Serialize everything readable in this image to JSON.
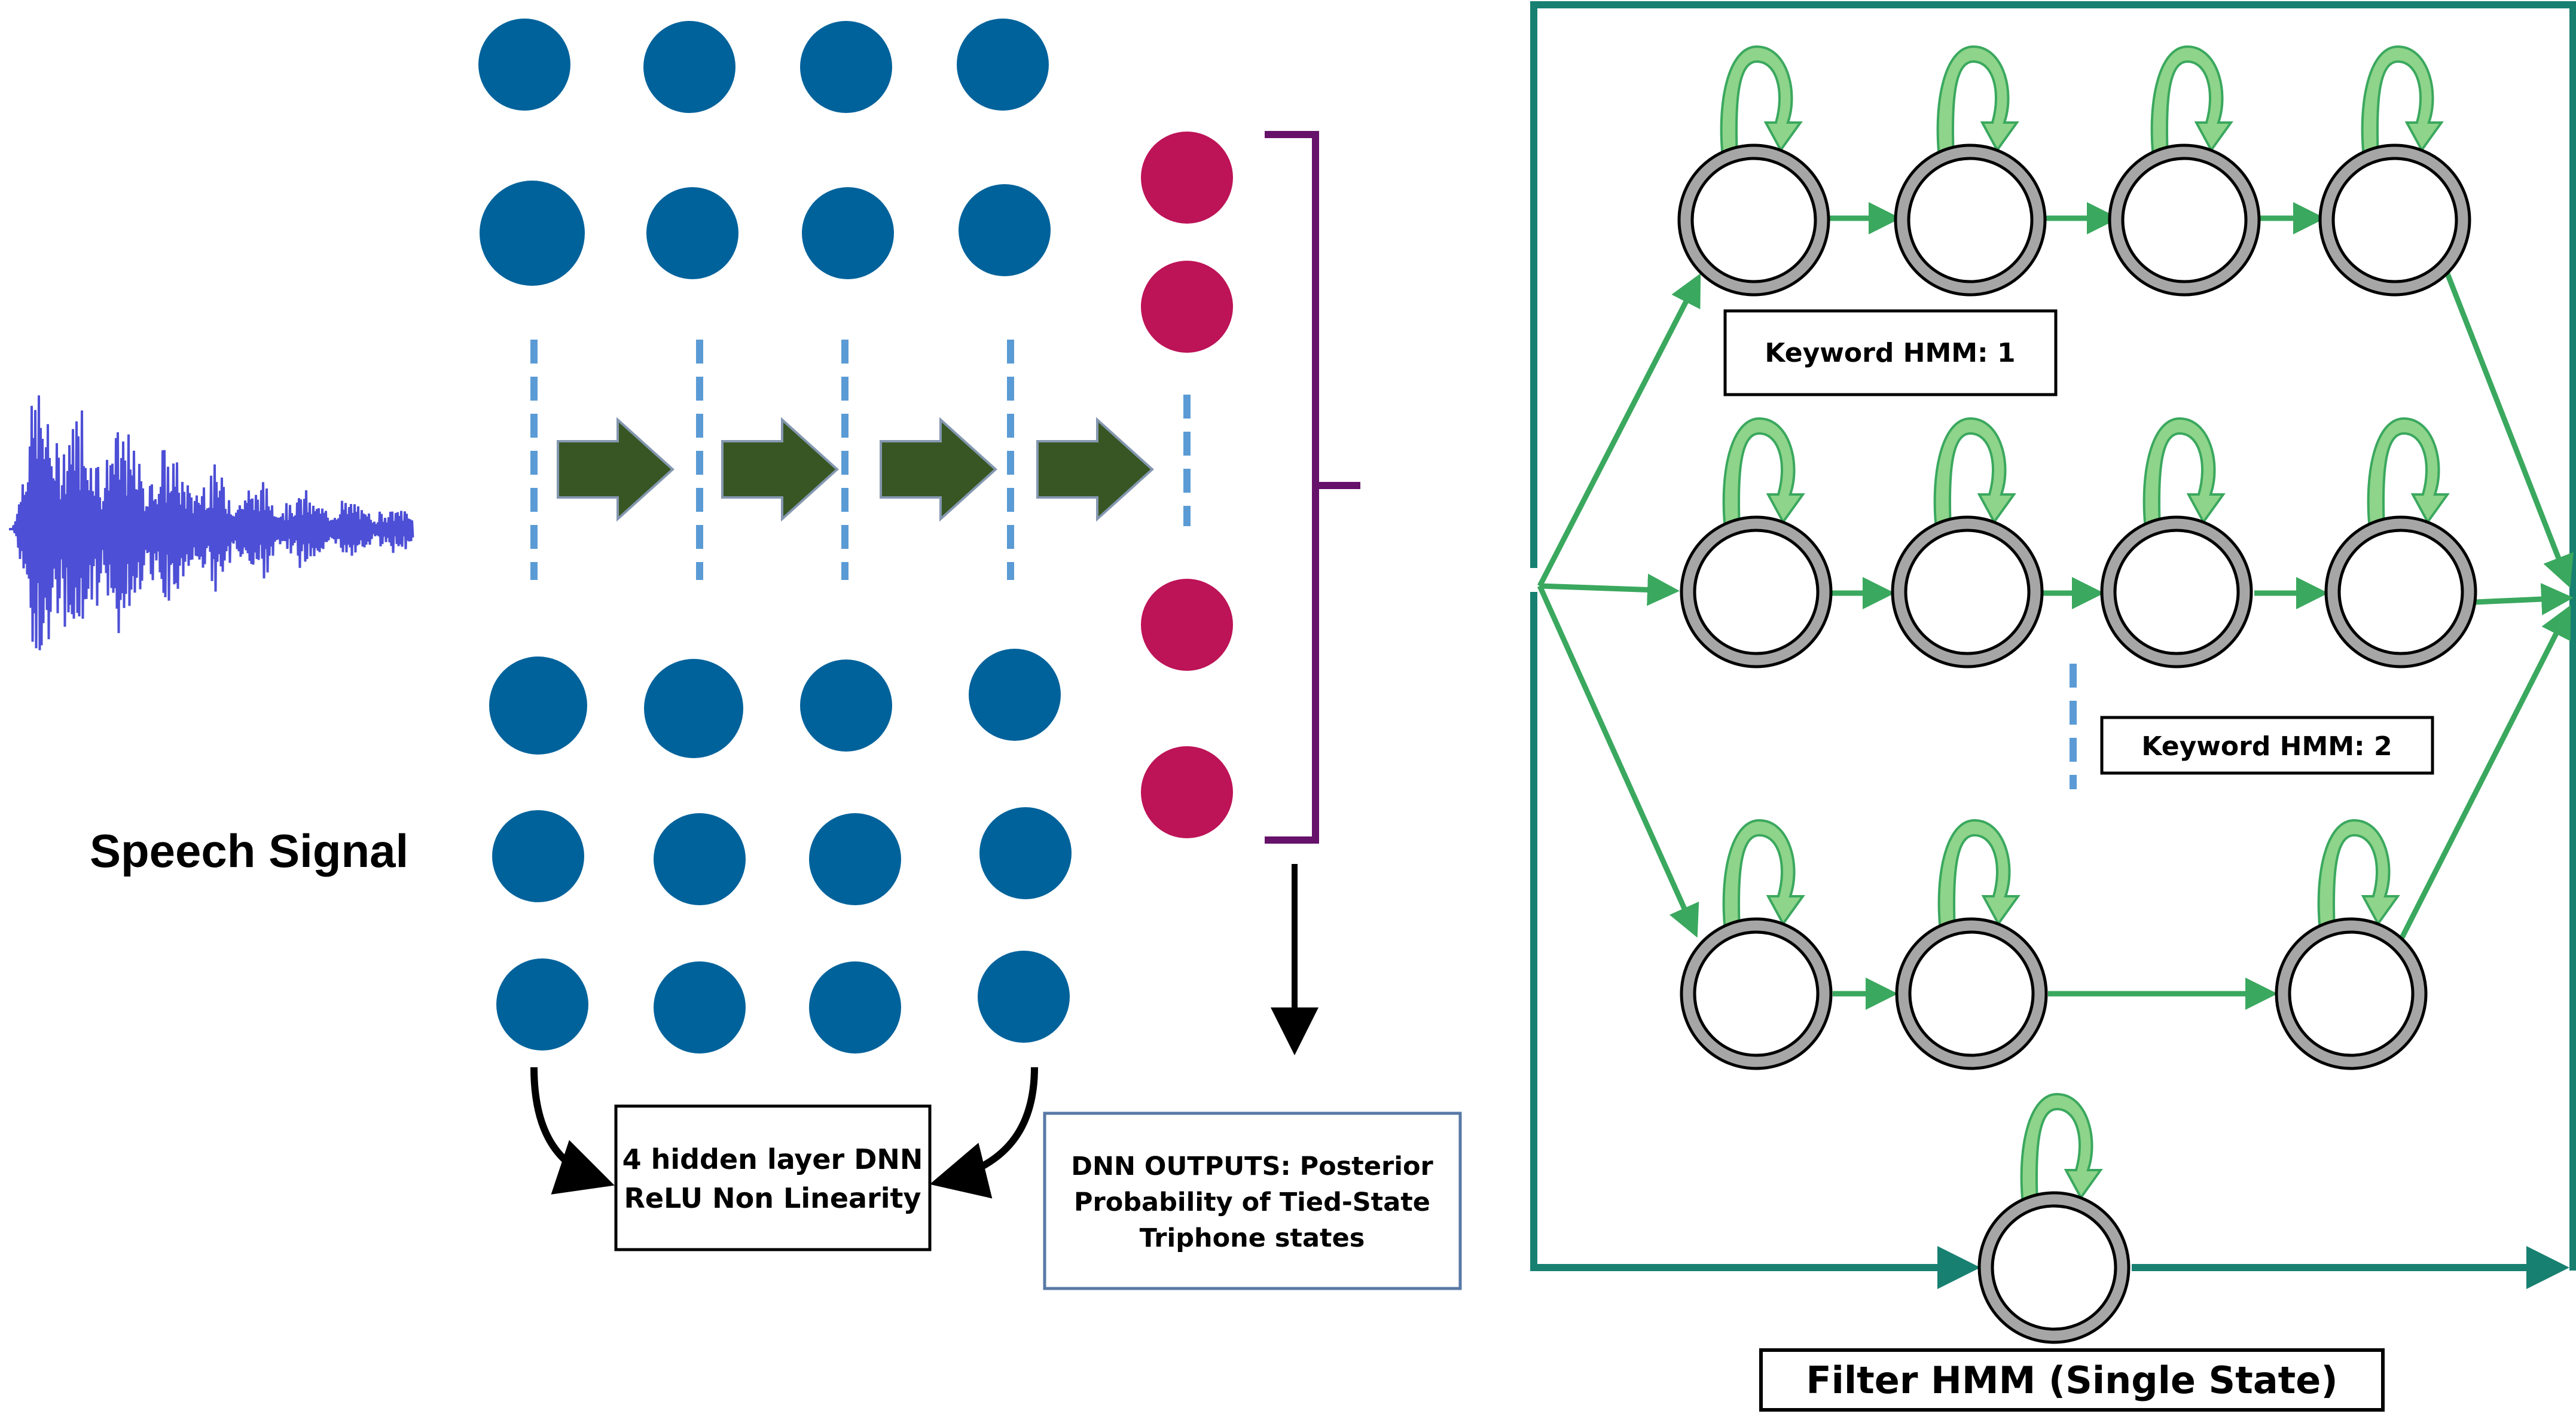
{
  "labels": {
    "speech_signal": "Speech Signal",
    "dnn_box_line1": "4 hidden layer DNN",
    "dnn_box_line2": "ReLU Non Linearity",
    "outputs_line1": "DNN OUTPUTS: Posterior",
    "outputs_line2": "Probability of Tied-State",
    "outputs_line3": "Triphone states",
    "keyword_hmm_1": "Keyword HMM: 1",
    "keyword_hmm_2": "Keyword HMM: 2",
    "filter_hmm": "Filter HMM (Single State)"
  },
  "colors": {
    "hidden_node": "#00629b",
    "output_node": "#bd1357",
    "dashed": "#5b9bd5",
    "layer_arrow": "#375623",
    "bracket": "#66116a",
    "hmm_arrow": "#3aa85e",
    "self_loop": "#8ed48a",
    "frame": "#178071",
    "state_ring": "#a6a6a6",
    "waveform": "#4d4fd6"
  },
  "icons": {
    "waveform": "speech-waveform-icon"
  }
}
